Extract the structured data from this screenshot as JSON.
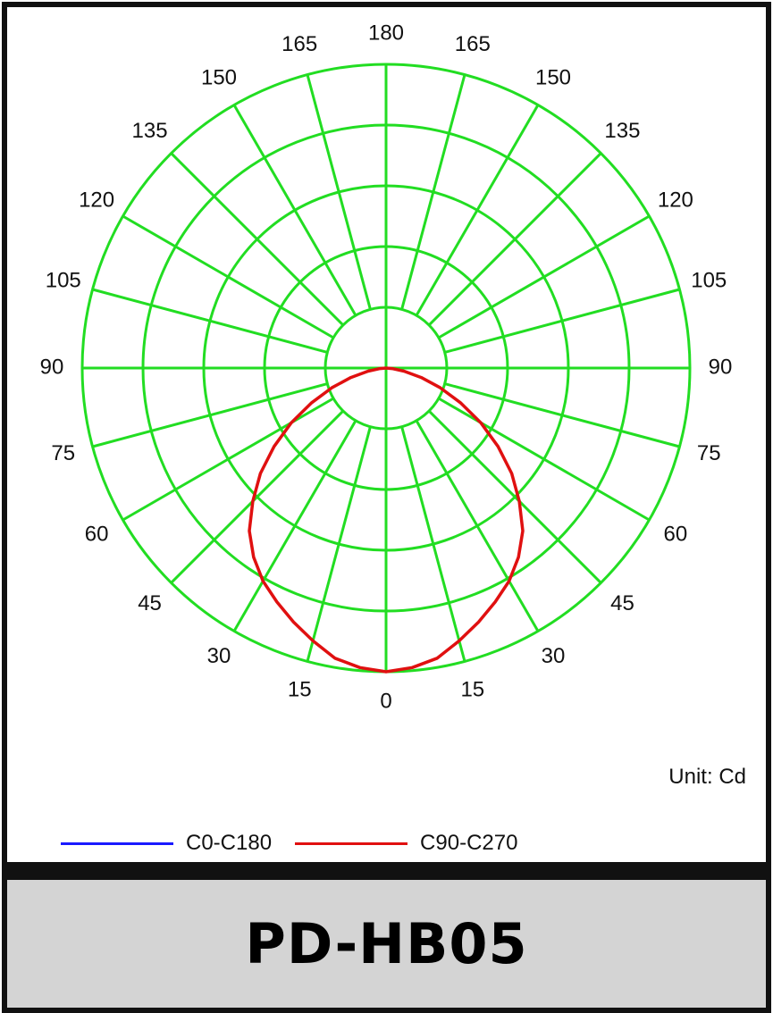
{
  "chart_data": {
    "type": "polar",
    "radial_tick_labels_left": [
      "165",
      "150",
      "135",
      "120",
      "105",
      "90",
      "75",
      "60",
      "45",
      "30",
      "15"
    ],
    "radial_tick_labels_right": [
      "165",
      "150",
      "135",
      "120",
      "105",
      "90",
      "75",
      "60",
      "45",
      "30",
      "15"
    ],
    "top_label": "180",
    "bottom_label": "0",
    "angles_deg": [
      0,
      15,
      30,
      45,
      60,
      75,
      90,
      105,
      120,
      135,
      150,
      165,
      180
    ],
    "rings": 5,
    "grid": true,
    "grid_color": "#22dd22",
    "unit_label": "Unit: Cd",
    "legend_position": "bottom-left",
    "series": [
      {
        "name": "C0-C180",
        "color": "#1a1aff",
        "angles_deg": [],
        "values": []
      },
      {
        "name": "C90-C270",
        "color": "#e01010",
        "angles_deg": [
          0,
          5,
          10,
          15,
          20,
          25,
          30,
          35,
          40,
          45,
          50,
          55,
          60,
          65,
          70,
          75,
          80,
          85,
          90
        ],
        "values_relative": [
          1.0,
          0.99,
          0.97,
          0.93,
          0.89,
          0.85,
          0.81,
          0.76,
          0.7,
          0.62,
          0.54,
          0.45,
          0.36,
          0.27,
          0.19,
          0.12,
          0.06,
          0.02,
          0.0
        ]
      }
    ]
  },
  "footer": {
    "model": "PD-HB05"
  }
}
